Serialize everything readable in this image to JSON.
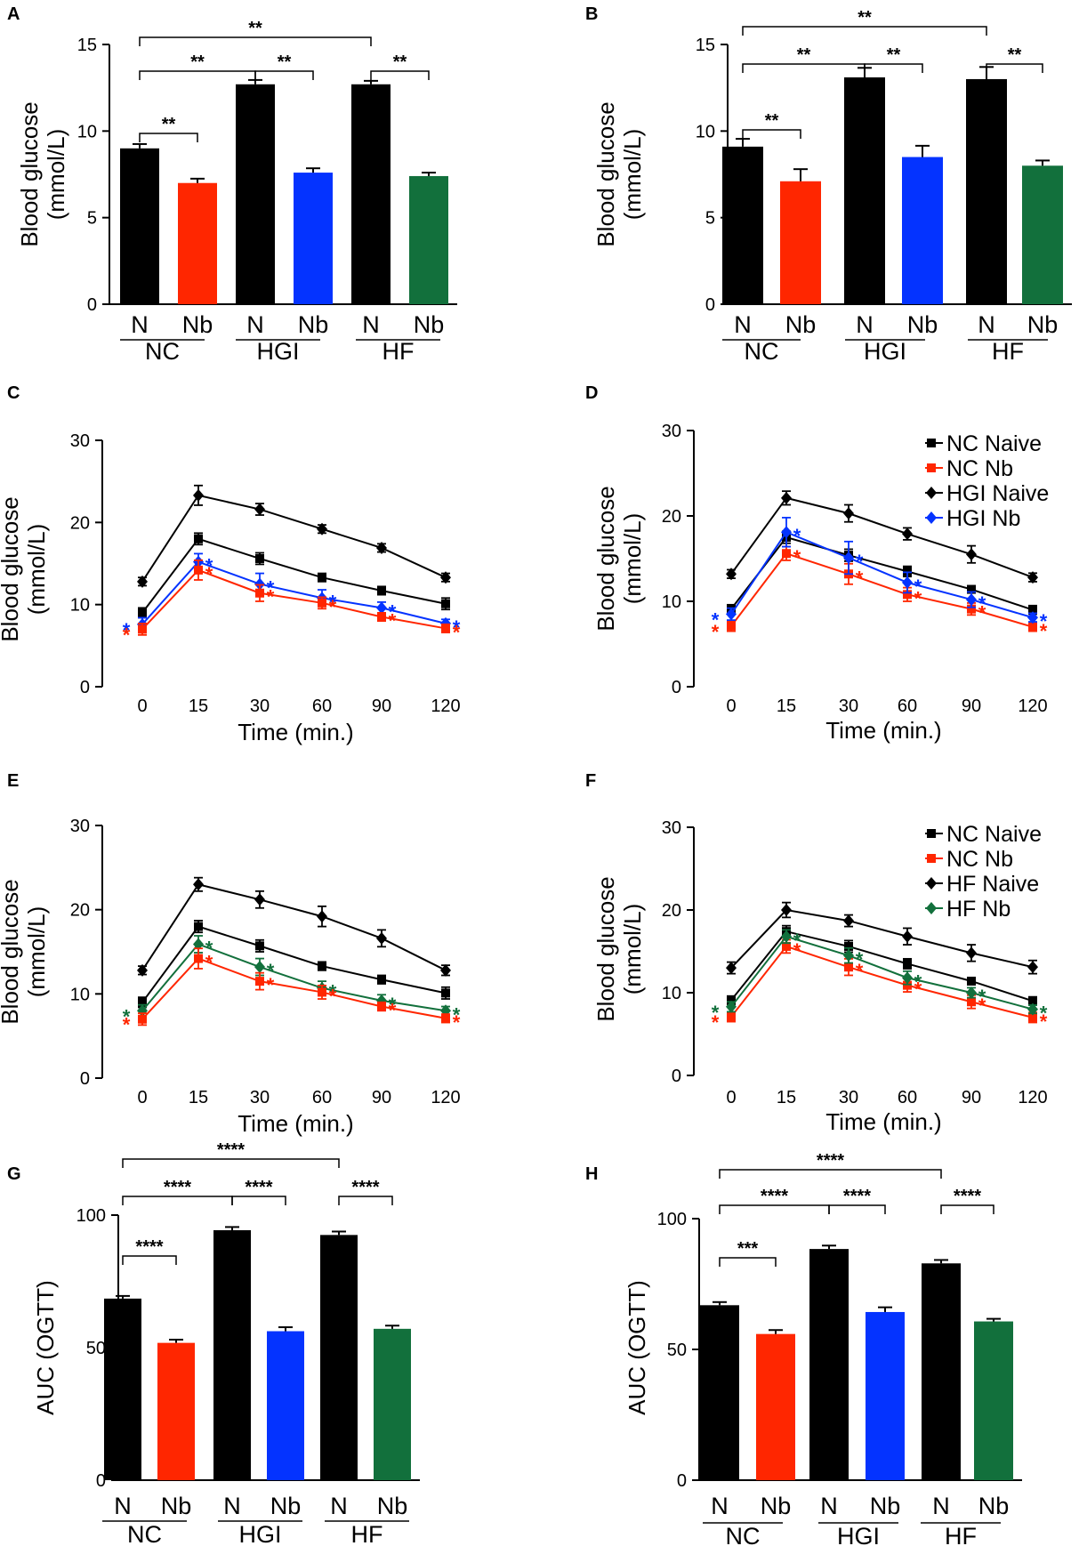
{
  "colors": {
    "N": "#000000",
    "NC_Nb": "#ff2600",
    "HGI_Nb": "#0433ff",
    "HF_Nb": "#12703c"
  },
  "chart_data": [
    {
      "panel": "A",
      "type": "bar",
      "ylabel": [
        "Blood glucose",
        "(mmol/L)"
      ],
      "ylim": [
        0,
        15
      ],
      "yticks": [
        0,
        5,
        10,
        15
      ],
      "groups": [
        "NC",
        "HGI",
        "HF"
      ],
      "categories": [
        "N",
        "Nb",
        "N",
        "Nb",
        "N",
        "Nb"
      ],
      "values": [
        9.0,
        7.0,
        12.7,
        7.6,
        12.7,
        7.4
      ],
      "errors": [
        0.25,
        0.25,
        0.25,
        0.25,
        0.2,
        0.2
      ],
      "significance": [
        {
          "from": 0,
          "to": 1,
          "label": "**"
        },
        {
          "from": 2,
          "to": 3,
          "label": "**"
        },
        {
          "from": 4,
          "to": 5,
          "label": "**"
        },
        {
          "from": 0,
          "to": 2,
          "label": "**"
        },
        {
          "from": 0,
          "to": 4,
          "label": "**"
        }
      ]
    },
    {
      "panel": "B",
      "type": "bar",
      "ylabel": [
        "Blood glucose",
        "(mmol/L)"
      ],
      "ylim": [
        0,
        15
      ],
      "yticks": [
        0,
        5,
        10,
        15
      ],
      "groups": [
        "NC",
        "HGI",
        "HF"
      ],
      "categories": [
        "N",
        "Nb",
        "N",
        "Nb",
        "N",
        "Nb"
      ],
      "values": [
        9.1,
        7.1,
        13.1,
        8.5,
        13.0,
        8.0
      ],
      "errors": [
        0.45,
        0.7,
        0.55,
        0.65,
        0.7,
        0.3
      ],
      "significance": [
        {
          "from": 0,
          "to": 1,
          "label": "**"
        },
        {
          "from": 2,
          "to": 3,
          "label": "**"
        },
        {
          "from": 4,
          "to": 5,
          "label": "**"
        },
        {
          "from": 0,
          "to": 2,
          "label": "**"
        },
        {
          "from": 0,
          "to": 4,
          "label": "**"
        }
      ]
    },
    {
      "panel": "C",
      "type": "line",
      "xlabel": "Time (min.)",
      "ylabel": [
        "Blood glucose",
        "(mmol/L)"
      ],
      "ylim": [
        0,
        30
      ],
      "yticks": [
        0,
        10,
        20,
        30
      ],
      "x": [
        "0",
        "15",
        "30",
        "60",
        "90",
        "120"
      ],
      "series": [
        {
          "name": "NC Naive",
          "color": "#000000",
          "marker": "square",
          "values": [
            9.0,
            18.0,
            15.6,
            13.3,
            11.7,
            10.1
          ],
          "errors": [
            0.6,
            0.7,
            0.7,
            0.5,
            0.5,
            0.7
          ]
        },
        {
          "name": "HGI Naive",
          "color": "#000000",
          "marker": "diamond",
          "values": [
            12.8,
            23.3,
            21.6,
            19.2,
            16.9,
            13.3
          ],
          "errors": [
            0.5,
            1.2,
            0.7,
            0.5,
            0.5,
            0.5
          ]
        },
        {
          "name": "HGI Nb",
          "color": "#0433ff",
          "marker": "diamond",
          "values": [
            7.6,
            15.2,
            12.5,
            10.8,
            9.6,
            7.7
          ],
          "errors": [
            0.8,
            1.0,
            1.3,
            1.0,
            0.7,
            0.5
          ],
          "stars": true
        },
        {
          "name": "NC Nb",
          "color": "#ff2600",
          "marker": "square",
          "values": [
            7.0,
            14.2,
            11.4,
            10.2,
            8.5,
            7.1
          ],
          "errors": [
            0.7,
            1.2,
            1.0,
            0.7,
            0.5,
            0.5
          ],
          "stars": true
        }
      ]
    },
    {
      "panel": "D",
      "type": "line",
      "xlabel": "Time (min.)",
      "ylabel": [
        "Blood glucose",
        "(mmol/L)"
      ],
      "ylim": [
        0,
        30
      ],
      "yticks": [
        0,
        10,
        20,
        30
      ],
      "x": [
        "0",
        "15",
        "30",
        "60",
        "90",
        "120"
      ],
      "legend": [
        "NC Naive",
        "NC Nb",
        "HGI Naive",
        "HGI Nb"
      ],
      "legend_position": "top-right",
      "series": [
        {
          "name": "NC Naive",
          "color": "#000000",
          "marker": "square",
          "values": [
            9.1,
            17.5,
            15.4,
            13.5,
            11.4,
            9.0
          ],
          "errors": [
            0.5,
            0.7,
            0.7,
            0.6,
            0.4,
            0.5
          ]
        },
        {
          "name": "NC Nb",
          "color": "#ff2600",
          "marker": "square",
          "values": [
            7.1,
            15.6,
            13.2,
            10.8,
            9.1,
            7.0
          ],
          "errors": [
            0.6,
            0.8,
            1.2,
            0.8,
            0.7,
            0.5
          ],
          "stars": true
        },
        {
          "name": "HGI Naive",
          "color": "#000000",
          "marker": "diamond",
          "values": [
            13.2,
            22.1,
            20.3,
            17.9,
            15.5,
            12.8
          ],
          "errors": [
            0.5,
            0.8,
            1.0,
            0.7,
            1.0,
            0.5
          ]
        },
        {
          "name": "HGI Nb",
          "color": "#0433ff",
          "marker": "diamond",
          "values": [
            8.5,
            18.1,
            15.1,
            12.2,
            10.2,
            8.1
          ],
          "errors": [
            0.7,
            1.7,
            1.9,
            1.2,
            0.9,
            0.5
          ],
          "stars": true
        }
      ]
    },
    {
      "panel": "E",
      "type": "line",
      "xlabel": "Time (min.)",
      "ylabel": [
        "Blood glucose",
        "(mmol/L)"
      ],
      "ylim": [
        0,
        30
      ],
      "yticks": [
        0,
        10,
        20,
        30
      ],
      "x": [
        "0",
        "15",
        "30",
        "60",
        "90",
        "120"
      ],
      "series": [
        {
          "name": "NC Naive",
          "color": "#000000",
          "marker": "square",
          "values": [
            9.0,
            18.0,
            15.7,
            13.3,
            11.7,
            10.1
          ],
          "errors": [
            0.6,
            0.7,
            0.7,
            0.5,
            0.5,
            0.7
          ]
        },
        {
          "name": "HF Naive",
          "color": "#000000",
          "marker": "diamond",
          "values": [
            12.8,
            23.0,
            21.2,
            19.2,
            16.6,
            12.8
          ],
          "errors": [
            0.5,
            0.8,
            1.0,
            1.2,
            1.0,
            0.6
          ]
        },
        {
          "name": "HF Nb",
          "color": "#12703c",
          "marker": "diamond",
          "values": [
            8.0,
            15.9,
            13.2,
            10.7,
            9.2,
            8.0
          ],
          "errors": [
            0.7,
            1.0,
            1.0,
            0.8,
            0.7,
            0.5
          ],
          "stars": true
        },
        {
          "name": "NC Nb",
          "color": "#ff2600",
          "marker": "square",
          "values": [
            7.0,
            14.2,
            11.5,
            10.2,
            8.5,
            7.1
          ],
          "errors": [
            0.7,
            1.2,
            1.0,
            0.8,
            0.5,
            0.5
          ],
          "stars": true
        }
      ]
    },
    {
      "panel": "F",
      "type": "line",
      "xlabel": "Time (min.)",
      "ylabel": [
        "Blood glucose",
        "(mmol/L)"
      ],
      "ylim": [
        0,
        30
      ],
      "yticks": [
        0,
        10,
        20,
        30
      ],
      "x": [
        "0",
        "15",
        "30",
        "60",
        "90",
        "120"
      ],
      "legend": [
        "NC Naive",
        "NC Nb",
        "HF Naive",
        "HF Nb"
      ],
      "legend_position": "top-right",
      "series": [
        {
          "name": "NC Naive",
          "color": "#000000",
          "marker": "square",
          "values": [
            9.1,
            17.4,
            15.6,
            13.5,
            11.4,
            9.0
          ],
          "errors": [
            0.5,
            0.7,
            0.7,
            0.6,
            0.4,
            0.5
          ]
        },
        {
          "name": "NC Nb",
          "color": "#ff2600",
          "marker": "square",
          "values": [
            7.1,
            15.6,
            13.1,
            10.9,
            8.9,
            7.0
          ],
          "errors": [
            0.6,
            0.8,
            1.0,
            0.8,
            0.8,
            0.6
          ],
          "stars": true
        },
        {
          "name": "HF Naive",
          "color": "#000000",
          "marker": "diamond",
          "values": [
            13.0,
            20.0,
            18.7,
            16.8,
            14.8,
            13.1
          ],
          "errors": [
            0.7,
            0.9,
            0.7,
            1.0,
            1.0,
            0.8
          ]
        },
        {
          "name": "HF Nb",
          "color": "#12703c",
          "marker": "diamond",
          "values": [
            8.3,
            16.8,
            14.5,
            11.8,
            10.0,
            8.0
          ],
          "errors": [
            0.6,
            0.8,
            0.9,
            0.8,
            0.6,
            0.5
          ],
          "stars": true
        }
      ]
    },
    {
      "panel": "G",
      "type": "bar",
      "ylabel": [
        "AUC (OGTT)"
      ],
      "ylim": [
        0,
        100
      ],
      "yticks": [
        0,
        50,
        100
      ],
      "groups": [
        "NC",
        "HGI",
        "HF"
      ],
      "categories": [
        "N",
        "Nb",
        "N",
        "Nb",
        "N",
        "Nb"
      ],
      "values": [
        68.5,
        51.8,
        94.3,
        56.2,
        92.5,
        57.1
      ],
      "errors": [
        1.0,
        1.2,
        1.2,
        1.5,
        1.3,
        1.2
      ],
      "significance": [
        {
          "from": 0,
          "to": 1,
          "label": "****"
        },
        {
          "from": 2,
          "to": 3,
          "label": "****"
        },
        {
          "from": 4,
          "to": 5,
          "label": "****"
        },
        {
          "from": 0,
          "to": 2,
          "label": "****"
        },
        {
          "from": 0,
          "to": 4,
          "label": "****"
        }
      ]
    },
    {
      "panel": "H",
      "type": "bar",
      "ylabel": [
        "AUC (OGTT)"
      ],
      "ylim": [
        0,
        100
      ],
      "yticks": [
        0,
        50,
        100
      ],
      "groups": [
        "NC",
        "HGI",
        "HF"
      ],
      "categories": [
        "N",
        "Nb",
        "N",
        "Nb",
        "N",
        "Nb"
      ],
      "values": [
        66.9,
        55.9,
        88.4,
        64.3,
        82.9,
        60.7
      ],
      "errors": [
        1.2,
        1.5,
        1.3,
        1.8,
        1.3,
        1.0
      ],
      "significance": [
        {
          "from": 0,
          "to": 1,
          "label": "***"
        },
        {
          "from": 2,
          "to": 3,
          "label": "****"
        },
        {
          "from": 4,
          "to": 5,
          "label": "****"
        },
        {
          "from": 0,
          "to": 2,
          "label": "****"
        },
        {
          "from": 0,
          "to": 4,
          "label": "****"
        }
      ]
    }
  ]
}
